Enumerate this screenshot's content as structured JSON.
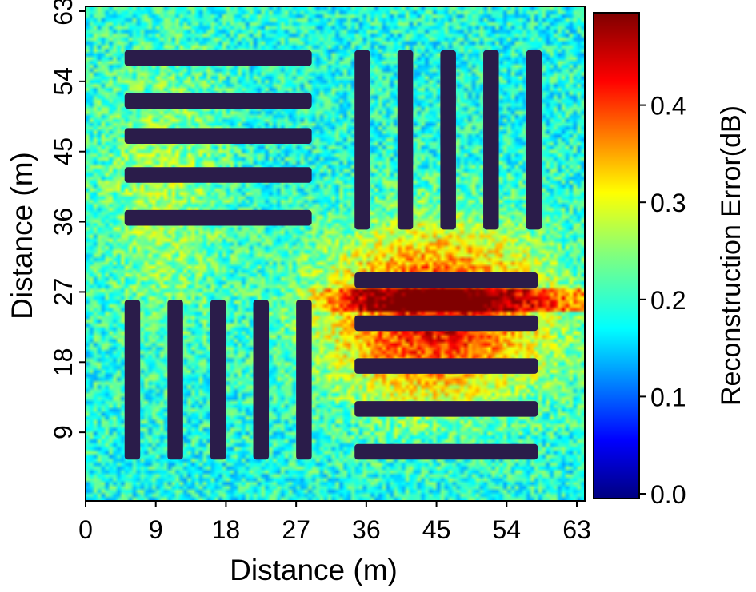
{
  "chart_data": {
    "type": "heatmap",
    "xlabel": "Distance (m)",
    "ylabel": "Distance (m)",
    "xlim": [
      0,
      64
    ],
    "ylim": [
      0,
      64
    ],
    "x_ticks": [
      "0",
      "9",
      "18",
      "27",
      "36",
      "45",
      "54",
      "63"
    ],
    "y_ticks": [
      "9",
      "18",
      "27",
      "36",
      "45",
      "54",
      "63"
    ],
    "colorbar": {
      "label": "Reconstruction Error(dB)",
      "range": [
        0.0,
        0.5
      ],
      "colormap": "jet",
      "ticks": [
        "0.0",
        "0.1",
        "0.2",
        "0.3",
        "0.4"
      ]
    },
    "background_level": 0.2,
    "bar_level": 0.0,
    "bar_groups": [
      {
        "name": "top-left",
        "orientation": "horizontal",
        "x_range": [
          5,
          29
        ],
        "y_centers": [
          57,
          51.5,
          47,
          42,
          36.5
        ],
        "thickness": 2
      },
      {
        "name": "top-right",
        "orientation": "vertical",
        "y_range": [
          35,
          58
        ],
        "x_centers": [
          35.5,
          41,
          46.5,
          52,
          57.5
        ],
        "thickness": 2
      },
      {
        "name": "bottom-left",
        "orientation": "vertical",
        "y_range": [
          5.5,
          26
        ],
        "x_centers": [
          6,
          11.5,
          17,
          22.5,
          28
        ],
        "thickness": 2
      },
      {
        "name": "bottom-right",
        "orientation": "horizontal",
        "x_range": [
          34.5,
          58
        ],
        "y_centers": [
          28.5,
          23,
          17.5,
          12,
          6.5
        ],
        "thickness": 2
      }
    ],
    "hot_region": {
      "x_range": [
        30,
        63
      ],
      "y_range": [
        10,
        36
      ],
      "peak_level": 0.45
    }
  }
}
